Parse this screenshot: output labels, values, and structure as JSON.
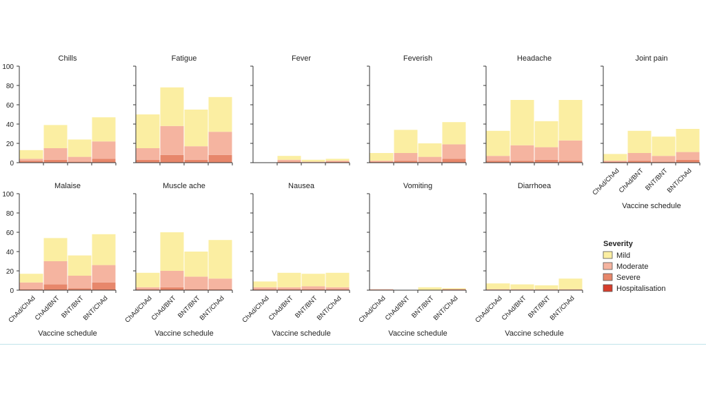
{
  "severity_colors": {
    "Mild": "#fbeea2",
    "Moderate": "#f5b4a0",
    "Severe": "#e7876b",
    "Hospitalisation": "#d63d2c"
  },
  "legend": {
    "title": "Severity",
    "items": [
      "Mild",
      "Moderate",
      "Severe",
      "Hospitalisation"
    ]
  },
  "chart_data": [
    {
      "type": "bar",
      "stacked": true,
      "title": "Chills",
      "xlabel": "",
      "categories": [
        "ChAd/ChAd",
        "ChAd/BNT",
        "BNT/BNT",
        "BNT/ChAd"
      ],
      "ylim": [
        0,
        100
      ],
      "yticks": [
        0,
        20,
        40,
        60,
        80,
        100
      ],
      "series": [
        {
          "name": "Hospitalisation",
          "values": [
            0,
            0,
            0,
            0
          ]
        },
        {
          "name": "Severe",
          "values": [
            2,
            3,
            1,
            4
          ]
        },
        {
          "name": "Moderate",
          "values": [
            2,
            12,
            5,
            18
          ]
        },
        {
          "name": "Mild",
          "values": [
            9,
            24,
            18,
            25
          ]
        }
      ]
    },
    {
      "type": "bar",
      "stacked": true,
      "title": "Fatigue",
      "xlabel": "",
      "categories": [
        "ChAd/ChAd",
        "ChAd/BNT",
        "BNT/BNT",
        "BNT/ChAd"
      ],
      "ylim": [
        0,
        100
      ],
      "yticks": [
        0,
        20,
        40,
        60,
        80,
        100
      ],
      "series": [
        {
          "name": "Hospitalisation",
          "values": [
            0,
            0,
            0,
            0
          ]
        },
        {
          "name": "Severe",
          "values": [
            3,
            8,
            3,
            8
          ]
        },
        {
          "name": "Moderate",
          "values": [
            12,
            30,
            14,
            24
          ]
        },
        {
          "name": "Mild",
          "values": [
            35,
            40,
            38,
            36
          ]
        }
      ]
    },
    {
      "type": "bar",
      "stacked": true,
      "title": "Fever",
      "xlabel": "",
      "categories": [
        "ChAd/ChAd",
        "ChAd/BNT",
        "BNT/BNT",
        "BNT/ChAd"
      ],
      "ylim": [
        0,
        100
      ],
      "yticks": [
        0,
        20,
        40,
        60,
        80,
        100
      ],
      "series": [
        {
          "name": "Hospitalisation",
          "values": [
            0,
            0,
            0,
            0
          ]
        },
        {
          "name": "Severe",
          "values": [
            0,
            1,
            0,
            1
          ]
        },
        {
          "name": "Moderate",
          "values": [
            0,
            2,
            1,
            1
          ]
        },
        {
          "name": "Mild",
          "values": [
            0,
            4,
            2,
            2
          ]
        }
      ]
    },
    {
      "type": "bar",
      "stacked": true,
      "title": "Feverish",
      "xlabel": "",
      "categories": [
        "ChAd/ChAd",
        "ChAd/BNT",
        "BNT/BNT",
        "BNT/ChAd"
      ],
      "ylim": [
        0,
        100
      ],
      "yticks": [
        0,
        20,
        40,
        60,
        80,
        100
      ],
      "series": [
        {
          "name": "Hospitalisation",
          "values": [
            0,
            0,
            0,
            0
          ]
        },
        {
          "name": "Severe",
          "values": [
            1,
            2,
            1,
            4
          ]
        },
        {
          "name": "Moderate",
          "values": [
            1,
            8,
            5,
            15
          ]
        },
        {
          "name": "Mild",
          "values": [
            8,
            24,
            14,
            23
          ]
        }
      ]
    },
    {
      "type": "bar",
      "stacked": true,
      "title": "Headache",
      "xlabel": "",
      "categories": [
        "ChAd/ChAd",
        "ChAd/BNT",
        "BNT/BNT",
        "BNT/ChAd"
      ],
      "ylim": [
        0,
        100
      ],
      "yticks": [
        0,
        20,
        40,
        60,
        80,
        100
      ],
      "series": [
        {
          "name": "Hospitalisation",
          "values": [
            0,
            0,
            0,
            0
          ]
        },
        {
          "name": "Severe",
          "values": [
            2,
            2,
            3,
            2
          ]
        },
        {
          "name": "Moderate",
          "values": [
            5,
            16,
            13,
            21
          ]
        },
        {
          "name": "Mild",
          "values": [
            26,
            47,
            27,
            42
          ]
        }
      ]
    },
    {
      "type": "bar",
      "stacked": true,
      "title": "Joint pain",
      "xlabel": "Vaccine schedule",
      "categories": [
        "ChAd/ChAd",
        "ChAd/BNT",
        "BNT/BNT",
        "BNT/ChAd"
      ],
      "ylim": [
        0,
        100
      ],
      "yticks": [
        0,
        20,
        40,
        60,
        80,
        100
      ],
      "series": [
        {
          "name": "Hospitalisation",
          "values": [
            0,
            0,
            0,
            0
          ]
        },
        {
          "name": "Severe",
          "values": [
            1,
            2,
            1,
            3
          ]
        },
        {
          "name": "Moderate",
          "values": [
            1,
            8,
            6,
            8
          ]
        },
        {
          "name": "Mild",
          "values": [
            7,
            23,
            20,
            24
          ]
        }
      ]
    },
    {
      "type": "bar",
      "stacked": true,
      "title": "Malaise",
      "xlabel": "Vaccine schedule",
      "categories": [
        "ChAd/ChAd",
        "ChAd/BNT",
        "BNT/BNT",
        "BNT/ChAd"
      ],
      "ylim": [
        0,
        100
      ],
      "yticks": [
        0,
        20,
        40,
        60,
        80,
        100
      ],
      "series": [
        {
          "name": "Hospitalisation",
          "values": [
            0,
            0,
            0,
            0
          ]
        },
        {
          "name": "Severe",
          "values": [
            1,
            6,
            2,
            8
          ]
        },
        {
          "name": "Moderate",
          "values": [
            7,
            24,
            13,
            18
          ]
        },
        {
          "name": "Mild",
          "values": [
            9,
            24,
            21,
            32
          ]
        }
      ]
    },
    {
      "type": "bar",
      "stacked": true,
      "title": "Muscle ache",
      "xlabel": "Vaccine schedule",
      "categories": [
        "ChAd/ChAd",
        "ChAd/BNT",
        "BNT/BNT",
        "BNT/ChAd"
      ],
      "ylim": [
        0,
        100
      ],
      "yticks": [
        0,
        20,
        40,
        60,
        80,
        100
      ],
      "series": [
        {
          "name": "Hospitalisation",
          "values": [
            0,
            0,
            0,
            0
          ]
        },
        {
          "name": "Severe",
          "values": [
            1,
            3,
            1,
            1
          ]
        },
        {
          "name": "Moderate",
          "values": [
            2,
            17,
            13,
            11
          ]
        },
        {
          "name": "Mild",
          "values": [
            15,
            40,
            26,
            40
          ]
        }
      ]
    },
    {
      "type": "bar",
      "stacked": true,
      "title": "Nausea",
      "xlabel": "Vaccine schedule",
      "categories": [
        "ChAd/ChAd",
        "ChAd/BNT",
        "BNT/BNT",
        "BNT/ChAd"
      ],
      "ylim": [
        0,
        100
      ],
      "yticks": [
        0,
        20,
        40,
        60,
        80,
        100
      ],
      "series": [
        {
          "name": "Hospitalisation",
          "values": [
            0,
            0,
            0,
            0
          ]
        },
        {
          "name": "Severe",
          "values": [
            1,
            1,
            1,
            1
          ]
        },
        {
          "name": "Moderate",
          "values": [
            2,
            2,
            3,
            2
          ]
        },
        {
          "name": "Mild",
          "values": [
            6,
            15,
            13,
            15
          ]
        }
      ]
    },
    {
      "type": "bar",
      "stacked": true,
      "title": "Vomiting",
      "xlabel": "Vaccine schedule",
      "categories": [
        "ChAd/ChAd",
        "ChAd/BNT",
        "BNT/BNT",
        "BNT/ChAd"
      ],
      "ylim": [
        0,
        100
      ],
      "yticks": [
        0,
        20,
        40,
        60,
        80,
        100
      ],
      "series": [
        {
          "name": "Hospitalisation",
          "values": [
            0,
            0,
            0,
            0
          ]
        },
        {
          "name": "Severe",
          "values": [
            0,
            0,
            0,
            1
          ]
        },
        {
          "name": "Moderate",
          "values": [
            1,
            0,
            0,
            0
          ]
        },
        {
          "name": "Mild",
          "values": [
            0,
            0,
            3,
            1
          ]
        }
      ]
    },
    {
      "type": "bar",
      "stacked": true,
      "title": "Diarrhoea",
      "xlabel": "Vaccine schedule",
      "categories": [
        "ChAd/ChAd",
        "ChAd/BNT",
        "BNT/BNT",
        "BNT/ChAd"
      ],
      "ylim": [
        0,
        100
      ],
      "yticks": [
        0,
        20,
        40,
        60,
        80,
        100
      ],
      "series": [
        {
          "name": "Hospitalisation",
          "values": [
            0,
            0,
            0,
            0
          ]
        },
        {
          "name": "Severe",
          "values": [
            0,
            0,
            0,
            0
          ]
        },
        {
          "name": "Moderate",
          "values": [
            1,
            1,
            1,
            1
          ]
        },
        {
          "name": "Mild",
          "values": [
            6,
            5,
            4,
            11
          ]
        }
      ]
    }
  ]
}
